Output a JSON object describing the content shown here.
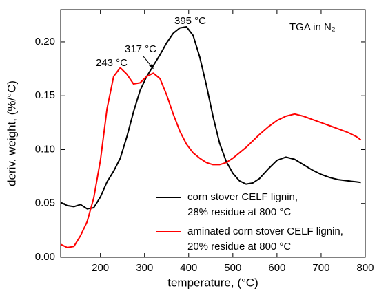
{
  "chart_data": {
    "type": "line",
    "xlabel": "temperature, (°C)",
    "ylabel": "deriv. weight, (%/°C)",
    "annotations": [
      "243 °C",
      "317 °C",
      "395 °C",
      "TGA in N₂"
    ],
    "x": [
      110,
      125,
      140,
      155,
      170,
      185,
      200,
      215,
      230,
      245,
      260,
      275,
      290,
      305,
      320,
      335,
      350,
      365,
      380,
      395,
      410,
      425,
      440,
      455,
      470,
      485,
      500,
      515,
      530,
      545,
      560,
      580,
      600,
      620,
      640,
      660,
      680,
      700,
      720,
      740,
      760,
      780,
      790
    ],
    "series": [
      {
        "name": "corn stover CELF lignin, 28% residue at 800 °C",
        "color": "#000000",
        "values": [
          0.051,
          0.048,
          0.047,
          0.049,
          0.045,
          0.046,
          0.056,
          0.07,
          0.08,
          0.092,
          0.112,
          0.135,
          0.155,
          0.168,
          0.178,
          0.188,
          0.199,
          0.208,
          0.213,
          0.214,
          0.206,
          0.186,
          0.16,
          0.131,
          0.106,
          0.089,
          0.078,
          0.071,
          0.068,
          0.069,
          0.073,
          0.082,
          0.09,
          0.093,
          0.091,
          0.086,
          0.081,
          0.077,
          0.074,
          0.072,
          0.071,
          0.07,
          0.0695
        ]
      },
      {
        "name": "aminated corn stover CELF lignin, 20% residue at 800 °C",
        "color": "#ff0000",
        "values": [
          0.012,
          0.009,
          0.01,
          0.02,
          0.033,
          0.055,
          0.09,
          0.138,
          0.168,
          0.176,
          0.17,
          0.161,
          0.162,
          0.168,
          0.171,
          0.166,
          0.151,
          0.133,
          0.117,
          0.105,
          0.097,
          0.092,
          0.088,
          0.086,
          0.086,
          0.088,
          0.092,
          0.097,
          0.102,
          0.108,
          0.114,
          0.121,
          0.127,
          0.131,
          0.133,
          0.131,
          0.128,
          0.125,
          0.122,
          0.119,
          0.116,
          0.112,
          0.109
        ]
      }
    ],
    "xlim": [
      110,
      800
    ],
    "xticks": [
      200,
      300,
      400,
      500,
      600,
      700,
      800
    ],
    "ylim": [
      0,
      0.23
    ],
    "yticks": [
      {
        "value": 0,
        "label": "0.00"
      },
      {
        "value": 0.05,
        "label": "0.05"
      },
      {
        "value": 0.1,
        "label": "0.10"
      },
      {
        "value": 0.15,
        "label": "0.15"
      },
      {
        "value": 0.2,
        "label": "0.20"
      }
    ],
    "grid": false,
    "legend": "lower right"
  }
}
